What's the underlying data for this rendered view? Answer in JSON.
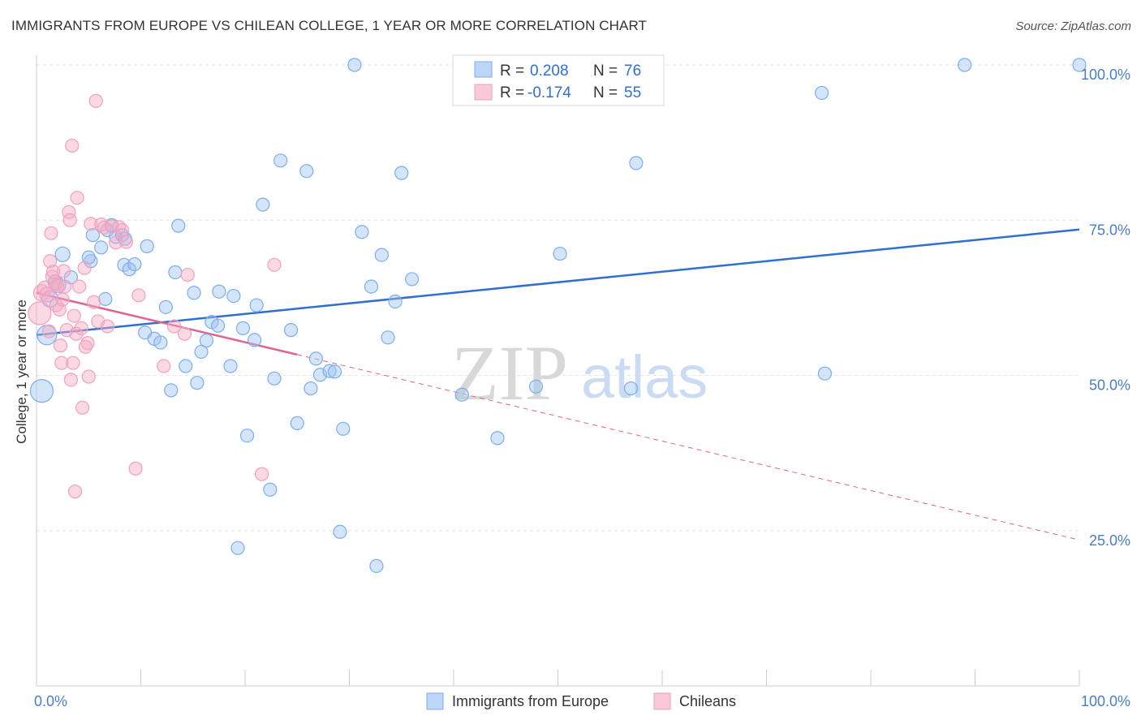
{
  "title": "IMMIGRANTS FROM EUROPE VS CHILEAN COLLEGE, 1 YEAR OR MORE CORRELATION CHART",
  "source": "Source: ZipAtlas.com",
  "watermark": {
    "zip": "ZIP",
    "atlas": "atlas"
  },
  "colors": {
    "blue": "#7aaef0",
    "blue_line": "#2f6fd0",
    "pink": "#f3a0bd",
    "pink_line": "#e0648f",
    "grid": "#e6e6e6"
  },
  "legend": {
    "items": [
      {
        "r_label": "R =",
        "r_value": "0.208",
        "n_label": "N =",
        "n_value": "76"
      },
      {
        "r_label": "R =",
        "r_value": "-0.174",
        "n_label": "N =",
        "n_value": "55"
      }
    ]
  },
  "bottom_legend": [
    "Immigrants from Europe",
    "Chileans"
  ],
  "chart_data": {
    "type": "scatter",
    "title": "IMMIGRANTS FROM EUROPE VS CHILEAN COLLEGE, 1 YEAR OR MORE CORRELATION CHART",
    "xlabel": "",
    "ylabel": "College, 1 year or more",
    "xlim": [
      0,
      100
    ],
    "ylim": [
      0,
      102
    ],
    "x_tick_labels": [
      "0.0%",
      "100.0%"
    ],
    "y_ticks": [
      25,
      50,
      75,
      100
    ],
    "y_tick_labels": [
      "25.0%",
      "50.0%",
      "75.0%",
      "100.0%"
    ],
    "grid": true,
    "legend_position": "top-center",
    "series": [
      {
        "name": "Immigrants from Europe",
        "color": "#7aaef0",
        "r": 0.208,
        "n": 76,
        "trend": {
          "x": [
            0,
            100
          ],
          "y": [
            56.5,
            73.5
          ],
          "style": "solid"
        },
        "points": [
          [
            0.5,
            47.5,
            14
          ],
          [
            1.0,
            56.5,
            12
          ],
          [
            1.3,
            62.3,
            10
          ],
          [
            1.8,
            65.0,
            9
          ],
          [
            2.1,
            64.5,
            9
          ],
          [
            2.5,
            69.5,
            9
          ],
          [
            3.3,
            65.8,
            8
          ],
          [
            5.2,
            68.4,
            8
          ],
          [
            5.4,
            72.6,
            8
          ],
          [
            5.0,
            69.0,
            8
          ],
          [
            6.2,
            70.6,
            8
          ],
          [
            6.6,
            62.3,
            8
          ],
          [
            6.8,
            73.4,
            8
          ],
          [
            7.2,
            74.2,
            8
          ],
          [
            7.6,
            72.3,
            8
          ],
          [
            8.2,
            72.6,
            8
          ],
          [
            8.5,
            72.0,
            8
          ],
          [
            8.4,
            67.8,
            8
          ],
          [
            8.9,
            67.1,
            8
          ],
          [
            9.4,
            67.9,
            8
          ],
          [
            10.6,
            70.8,
            8
          ],
          [
            10.4,
            56.9,
            8
          ],
          [
            11.3,
            55.9,
            8
          ],
          [
            11.9,
            55.3,
            8
          ],
          [
            12.4,
            61.0,
            8
          ],
          [
            12.9,
            47.6,
            8
          ],
          [
            13.3,
            66.6,
            8
          ],
          [
            13.6,
            74.1,
            8
          ],
          [
            14.3,
            51.5,
            8
          ],
          [
            15.1,
            63.3,
            8
          ],
          [
            15.4,
            48.8,
            8
          ],
          [
            15.8,
            53.8,
            8
          ],
          [
            16.3,
            55.6,
            8
          ],
          [
            16.8,
            58.6,
            8
          ],
          [
            17.4,
            58.0,
            8
          ],
          [
            17.5,
            63.5,
            8
          ],
          [
            18.6,
            51.5,
            8
          ],
          [
            18.9,
            62.8,
            8
          ],
          [
            19.3,
            22.2,
            8
          ],
          [
            19.8,
            57.6,
            8
          ],
          [
            20.2,
            40.3,
            8
          ],
          [
            20.9,
            55.7,
            8
          ],
          [
            21.1,
            61.3,
            8
          ],
          [
            21.7,
            77.5,
            8
          ],
          [
            22.4,
            31.6,
            8
          ],
          [
            22.8,
            49.5,
            8
          ],
          [
            23.4,
            84.6,
            8
          ],
          [
            24.4,
            57.3,
            8
          ],
          [
            25.0,
            42.3,
            8
          ],
          [
            25.9,
            82.9,
            8
          ],
          [
            26.3,
            47.9,
            8
          ],
          [
            26.8,
            52.7,
            8
          ],
          [
            27.2,
            50.1,
            8
          ],
          [
            28.1,
            50.7,
            8
          ],
          [
            28.6,
            50.6,
            8
          ],
          [
            29.1,
            24.8,
            8
          ],
          [
            29.4,
            41.4,
            8
          ],
          [
            30.5,
            100.0,
            8
          ],
          [
            31.2,
            73.1,
            8
          ],
          [
            32.1,
            64.3,
            8
          ],
          [
            32.6,
            19.3,
            8
          ],
          [
            33.1,
            69.4,
            8
          ],
          [
            33.7,
            56.1,
            8
          ],
          [
            34.4,
            61.9,
            8
          ],
          [
            35.0,
            82.6,
            8
          ],
          [
            36.0,
            65.5,
            8
          ],
          [
            40.8,
            46.9,
            8
          ],
          [
            44.2,
            39.9,
            8
          ],
          [
            47.9,
            48.2,
            8
          ],
          [
            50.2,
            69.6,
            8
          ],
          [
            57.0,
            47.9,
            8
          ],
          [
            57.5,
            84.2,
            8
          ],
          [
            75.3,
            95.5,
            8
          ],
          [
            75.6,
            50.3,
            8
          ],
          [
            89.0,
            100.0,
            8
          ],
          [
            100.0,
            100.0,
            8
          ]
        ]
      },
      {
        "name": "Chileans",
        "color": "#f3a0bd",
        "r": -0.174,
        "n": 55,
        "trend": {
          "x": [
            0,
            100
          ],
          "y": [
            63.3,
            23.5
          ],
          "style": "solid-then-dashed",
          "solid_until_x": 25
        },
        "points": [
          [
            0.3,
            60.0,
            14
          ],
          [
            0.5,
            63.3,
            10
          ],
          [
            0.8,
            64.0,
            9
          ],
          [
            1.0,
            63.0,
            9
          ],
          [
            1.2,
            57.1,
            8
          ],
          [
            1.3,
            68.4,
            8
          ],
          [
            1.4,
            72.9,
            8
          ],
          [
            1.5,
            65.9,
            8
          ],
          [
            1.6,
            66.7,
            8
          ],
          [
            1.8,
            64.7,
            8
          ],
          [
            1.9,
            61.3,
            8
          ],
          [
            2.0,
            64.4,
            8
          ],
          [
            2.2,
            60.6,
            8
          ],
          [
            2.3,
            54.8,
            8
          ],
          [
            2.4,
            52.0,
            8
          ],
          [
            2.5,
            62.2,
            8
          ],
          [
            2.6,
            66.8,
            8
          ],
          [
            2.7,
            64.3,
            8
          ],
          [
            2.9,
            57.3,
            8
          ],
          [
            3.1,
            76.3,
            8
          ],
          [
            3.2,
            75.0,
            8
          ],
          [
            3.3,
            49.3,
            8
          ],
          [
            3.4,
            87.0,
            8
          ],
          [
            3.5,
            52.0,
            8
          ],
          [
            3.6,
            59.6,
            8
          ],
          [
            3.7,
            31.3,
            8
          ],
          [
            3.8,
            56.7,
            8
          ],
          [
            3.9,
            78.6,
            8
          ],
          [
            4.1,
            64.3,
            8
          ],
          [
            4.3,
            57.6,
            8
          ],
          [
            4.4,
            44.8,
            8
          ],
          [
            4.6,
            67.3,
            8
          ],
          [
            4.7,
            54.6,
            8
          ],
          [
            4.9,
            55.2,
            8
          ],
          [
            5.0,
            49.8,
            8
          ],
          [
            5.2,
            74.4,
            8
          ],
          [
            5.5,
            61.8,
            8
          ],
          [
            5.7,
            94.2,
            8
          ],
          [
            5.9,
            58.7,
            8
          ],
          [
            6.2,
            74.3,
            8
          ],
          [
            6.5,
            73.8,
            8
          ],
          [
            6.8,
            57.9,
            8
          ],
          [
            7.2,
            74.0,
            8
          ],
          [
            7.6,
            71.4,
            8
          ],
          [
            7.9,
            73.9,
            8
          ],
          [
            8.2,
            73.4,
            8
          ],
          [
            8.6,
            71.5,
            8
          ],
          [
            9.5,
            35.0,
            8
          ],
          [
            9.8,
            62.9,
            8
          ],
          [
            12.2,
            51.5,
            8
          ],
          [
            13.2,
            57.9,
            8
          ],
          [
            14.2,
            56.7,
            8
          ],
          [
            14.5,
            66.2,
            8
          ],
          [
            21.6,
            34.1,
            8
          ],
          [
            22.8,
            67.8,
            8
          ]
        ]
      }
    ]
  }
}
